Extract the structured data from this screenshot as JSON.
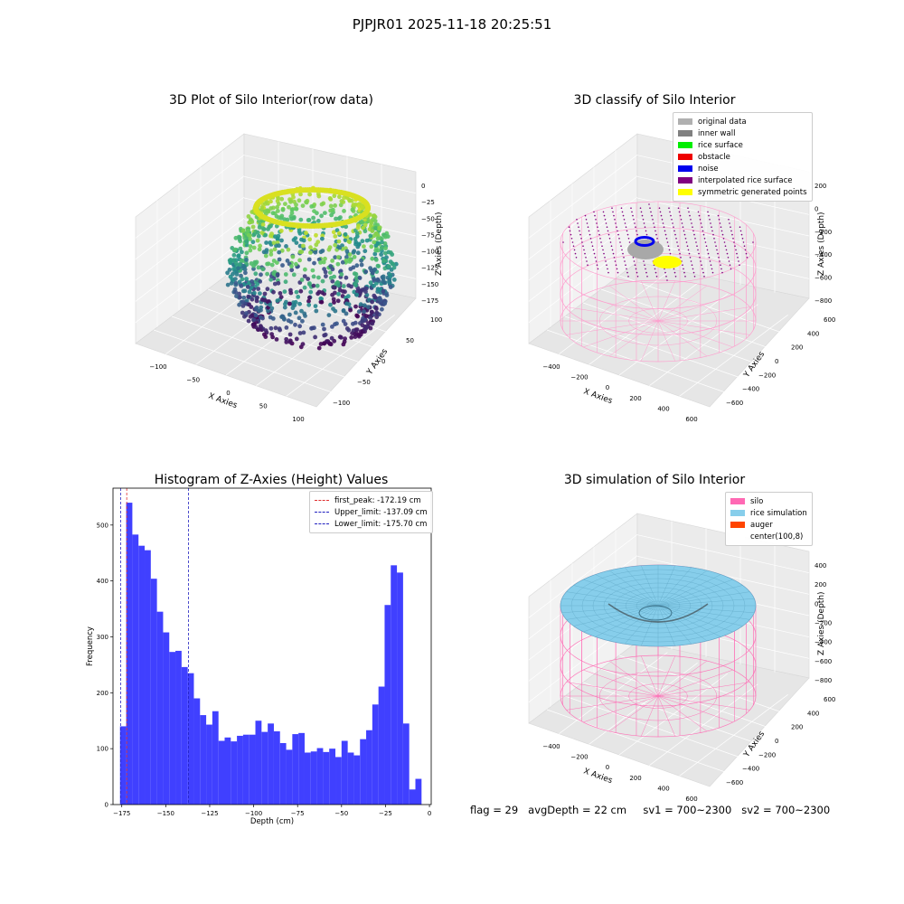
{
  "suptitle": "PJPJR01 2025-11-18 20:25:51",
  "panels": {
    "raw": {
      "title": "3D Plot of Silo Interior(row data)",
      "xlabel": "X Axies",
      "ylabel": "Y Axies",
      "zlabel": "Z Axies (Depth)",
      "x_ticks": [
        "−100",
        "−50",
        "0",
        "50",
        "100"
      ],
      "y_ticks": [
        "100",
        "50",
        "0",
        "−50",
        "−100"
      ],
      "z_ticks": [
        "0",
        "−25",
        "−50",
        "−75",
        "−100",
        "−125",
        "−150",
        "−175"
      ]
    },
    "classify": {
      "title": "3D classify of Silo Interior",
      "xlabel": "X Axies",
      "ylabel": "Y Axies",
      "zlabel": "Z Axies (Depth)",
      "x_ticks": [
        "−400",
        "−200",
        "0",
        "200",
        "400",
        "600"
      ],
      "y_ticks": [
        "600",
        "400",
        "200",
        "0",
        "−200",
        "−400",
        "−600"
      ],
      "z_ticks": [
        "200",
        "0",
        "−200",
        "−400",
        "−600",
        "−800"
      ],
      "legend": [
        {
          "label": "original data",
          "color": "#b0b0b0"
        },
        {
          "label": "inner wall",
          "color": "#808080"
        },
        {
          "label": "rice surface",
          "color": "#00ee00"
        },
        {
          "label": "obstacle",
          "color": "#ee0000"
        },
        {
          "label": "noise",
          "color": "#0000ee"
        },
        {
          "label": "interpolated rice surface",
          "color": "#800080"
        },
        {
          "label": "symmetric generated points",
          "color": "#ffff00"
        }
      ]
    },
    "simulation": {
      "title": "3D simulation of Silo Interior",
      "xlabel": "X Axies",
      "ylabel": "Y Axies",
      "zlabel": "Z Axies (Depth)",
      "x_ticks": [
        "−400",
        "−200",
        "0",
        "200",
        "400",
        "600"
      ],
      "y_ticks": [
        "600",
        "400",
        "200",
        "0",
        "−200",
        "−400",
        "−600"
      ],
      "z_ticks": [
        "400",
        "200",
        "0",
        "−200",
        "−400",
        "−600",
        "−800"
      ],
      "legend": [
        {
          "label": "silo",
          "color": "#ff69b4"
        },
        {
          "label": "rice simulation",
          "color": "#87ceeb"
        },
        {
          "label": "auger",
          "color": "#ff4500"
        },
        {
          "label": "center(100,8)",
          "color": "#ffffff"
        }
      ]
    }
  },
  "status": {
    "flag": "flag = 29",
    "avg_depth": "avgDepth = 22 cm",
    "sv1": "sv1 = 700~2300",
    "sv2": "sv2 = 700~2300"
  },
  "chart_data": {
    "type": "bar",
    "title": "Histogram of Z-Axies (Height) Values",
    "xlabel": "Depth (cm)",
    "ylabel": "Frequency",
    "xlim": [
      -180,
      1
    ],
    "ylim": [
      0,
      566
    ],
    "x_ticks": [
      -175,
      -150,
      -125,
      -100,
      -75,
      -50,
      -25,
      0
    ],
    "y_ticks": [
      0,
      100,
      200,
      300,
      400,
      500
    ],
    "bin_edges_start": -176,
    "bin_width": 3.5,
    "values": [
      140,
      540,
      483,
      463,
      455,
      404,
      345,
      308,
      273,
      275,
      246,
      235,
      190,
      160,
      143,
      167,
      114,
      120,
      113,
      123,
      125,
      125,
      150,
      130,
      145,
      131,
      110,
      98,
      126,
      128,
      93,
      95,
      101,
      94,
      100,
      85,
      114,
      93,
      88,
      117,
      133,
      179,
      211,
      357,
      428,
      415,
      145,
      27,
      46
    ],
    "bar_color": "#4040ff",
    "lines": [
      {
        "label": "first_peak: -172.19 cm",
        "x": -172.19,
        "color": "#e03030"
      },
      {
        "label": "Upper_limit: -137.09 cm",
        "x": -137.09,
        "color": "#2020c0"
      },
      {
        "label": "Lower_limit: -175.70 cm",
        "x": -175.7,
        "color": "#2020c0"
      }
    ]
  }
}
